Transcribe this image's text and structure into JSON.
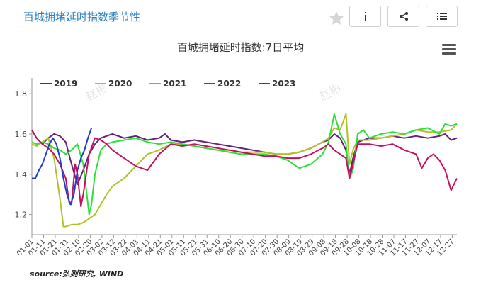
{
  "header": {
    "title": "百城拥堵延时指数季节性"
  },
  "chart_data": {
    "type": "line",
    "title": "百城拥堵延时指数:7日平均",
    "watermark": "赵彬",
    "source": "source:弘则研究, WIND",
    "ylim": [
      1.1,
      1.85
    ],
    "yticks": [
      1.2,
      1.4,
      1.6,
      1.8
    ],
    "ytick_labels": [
      "1.2",
      "1.4",
      "1.6",
      "1.8"
    ],
    "x_day_range": [
      1,
      365
    ],
    "xtick_labels": [
      "01-01",
      "01-11",
      "01-21",
      "01-31",
      "02-10",
      "02-20",
      "03-02",
      "03-12",
      "03-22",
      "04-01",
      "04-11",
      "04-21",
      "05-01",
      "05-11",
      "05-21",
      "05-31",
      "06-10",
      "06-20",
      "06-30",
      "07-10",
      "07-20",
      "07-30",
      "08-09",
      "08-19",
      "08-29",
      "09-08",
      "09-18",
      "09-28",
      "10-08",
      "10-18",
      "10-28",
      "11-07",
      "11-17",
      "11-27",
      "12-07",
      "12-17",
      "12-27"
    ],
    "legend_position": "top-left",
    "series": [
      {
        "name": "2019",
        "color": "#6a1f7a",
        "x": [
          1,
          5,
          10,
          15,
          20,
          25,
          30,
          35,
          40,
          45,
          50,
          55,
          60,
          65,
          70,
          80,
          90,
          100,
          110,
          115,
          120,
          130,
          140,
          150,
          160,
          170,
          180,
          190,
          200,
          210,
          220,
          230,
          240,
          250,
          255,
          260,
          265,
          270,
          273,
          276,
          280,
          290,
          300,
          310,
          320,
          330,
          340,
          350,
          355,
          360,
          365
        ],
        "y": [
          1.62,
          1.58,
          1.55,
          1.58,
          1.6,
          1.59,
          1.56,
          1.45,
          1.35,
          1.42,
          1.5,
          1.55,
          1.58,
          1.59,
          1.6,
          1.58,
          1.59,
          1.57,
          1.58,
          1.6,
          1.57,
          1.56,
          1.57,
          1.56,
          1.55,
          1.54,
          1.53,
          1.52,
          1.51,
          1.5,
          1.5,
          1.51,
          1.53,
          1.56,
          1.57,
          1.6,
          1.58,
          1.52,
          1.4,
          1.48,
          1.56,
          1.58,
          1.58,
          1.59,
          1.58,
          1.59,
          1.58,
          1.59,
          1.6,
          1.57,
          1.58
        ]
      },
      {
        "name": "2020",
        "color": "#b2c226",
        "x": [
          1,
          5,
          10,
          15,
          20,
          25,
          28,
          30,
          35,
          40,
          45,
          50,
          55,
          60,
          65,
          70,
          80,
          90,
          100,
          110,
          120,
          130,
          140,
          150,
          160,
          170,
          180,
          190,
          200,
          210,
          220,
          230,
          240,
          250,
          255,
          260,
          265,
          270,
          273,
          276,
          280,
          290,
          300,
          310,
          320,
          330,
          340,
          350,
          360,
          365
        ],
        "y": [
          1.55,
          1.54,
          1.56,
          1.58,
          1.48,
          1.28,
          1.14,
          1.14,
          1.15,
          1.15,
          1.16,
          1.18,
          1.2,
          1.25,
          1.3,
          1.34,
          1.38,
          1.44,
          1.5,
          1.52,
          1.55,
          1.55,
          1.54,
          1.53,
          1.52,
          1.52,
          1.51,
          1.51,
          1.51,
          1.5,
          1.5,
          1.51,
          1.53,
          1.56,
          1.58,
          1.63,
          1.62,
          1.7,
          1.45,
          1.52,
          1.57,
          1.57,
          1.58,
          1.59,
          1.6,
          1.62,
          1.61,
          1.61,
          1.62,
          1.65
        ]
      },
      {
        "name": "2021",
        "color": "#2ee03a",
        "x": [
          1,
          5,
          10,
          15,
          20,
          25,
          30,
          35,
          40,
          45,
          48,
          50,
          52,
          55,
          60,
          65,
          70,
          80,
          90,
          100,
          110,
          120,
          130,
          140,
          150,
          160,
          170,
          180,
          190,
          200,
          210,
          220,
          230,
          240,
          250,
          255,
          260,
          265,
          270,
          273,
          276,
          280,
          285,
          290,
          300,
          310,
          320,
          330,
          340,
          350,
          355,
          360,
          365
        ],
        "y": [
          1.56,
          1.55,
          1.56,
          1.55,
          1.53,
          1.52,
          1.5,
          1.52,
          1.55,
          1.45,
          1.3,
          1.2,
          1.25,
          1.4,
          1.52,
          1.55,
          1.56,
          1.57,
          1.58,
          1.56,
          1.55,
          1.56,
          1.55,
          1.54,
          1.53,
          1.52,
          1.51,
          1.5,
          1.5,
          1.5,
          1.49,
          1.47,
          1.43,
          1.45,
          1.5,
          1.56,
          1.7,
          1.6,
          1.55,
          1.38,
          1.42,
          1.6,
          1.62,
          1.58,
          1.6,
          1.61,
          1.6,
          1.62,
          1.63,
          1.6,
          1.65,
          1.64,
          1.65
        ]
      },
      {
        "name": "2022",
        "color": "#c4125e",
        "x": [
          1,
          5,
          10,
          15,
          20,
          25,
          30,
          33,
          35,
          38,
          40,
          43,
          45,
          50,
          55,
          60,
          65,
          70,
          80,
          90,
          100,
          110,
          120,
          130,
          140,
          150,
          160,
          170,
          180,
          190,
          200,
          210,
          220,
          230,
          240,
          250,
          255,
          260,
          265,
          270,
          273,
          276,
          280,
          290,
          300,
          310,
          320,
          330,
          335,
          340,
          345,
          350,
          355,
          360,
          365
        ],
        "y": [
          1.62,
          1.58,
          1.55,
          1.53,
          1.5,
          1.45,
          1.38,
          1.26,
          1.25,
          1.45,
          1.4,
          1.24,
          1.3,
          1.5,
          1.58,
          1.57,
          1.55,
          1.52,
          1.48,
          1.44,
          1.42,
          1.5,
          1.55,
          1.54,
          1.55,
          1.54,
          1.53,
          1.52,
          1.51,
          1.5,
          1.49,
          1.49,
          1.48,
          1.48,
          1.5,
          1.53,
          1.55,
          1.52,
          1.5,
          1.48,
          1.38,
          1.45,
          1.55,
          1.55,
          1.54,
          1.55,
          1.52,
          1.5,
          1.43,
          1.48,
          1.5,
          1.47,
          1.42,
          1.32,
          1.38
        ]
      },
      {
        "name": "2023",
        "color": "#1f3fc6",
        "x": [
          1,
          4,
          7,
          10,
          13,
          16,
          19,
          22,
          25,
          28,
          31,
          34,
          37,
          40,
          43,
          46,
          49,
          52
        ],
        "y": [
          1.38,
          1.38,
          1.42,
          1.45,
          1.5,
          1.55,
          1.58,
          1.55,
          1.48,
          1.38,
          1.3,
          1.25,
          1.3,
          1.42,
          1.48,
          1.52,
          1.58,
          1.63
        ]
      }
    ]
  },
  "icons": {
    "star": "star-icon",
    "info": "info-icon",
    "share": "share-icon",
    "list": "list-icon",
    "menu": "hamburger-menu-icon"
  }
}
